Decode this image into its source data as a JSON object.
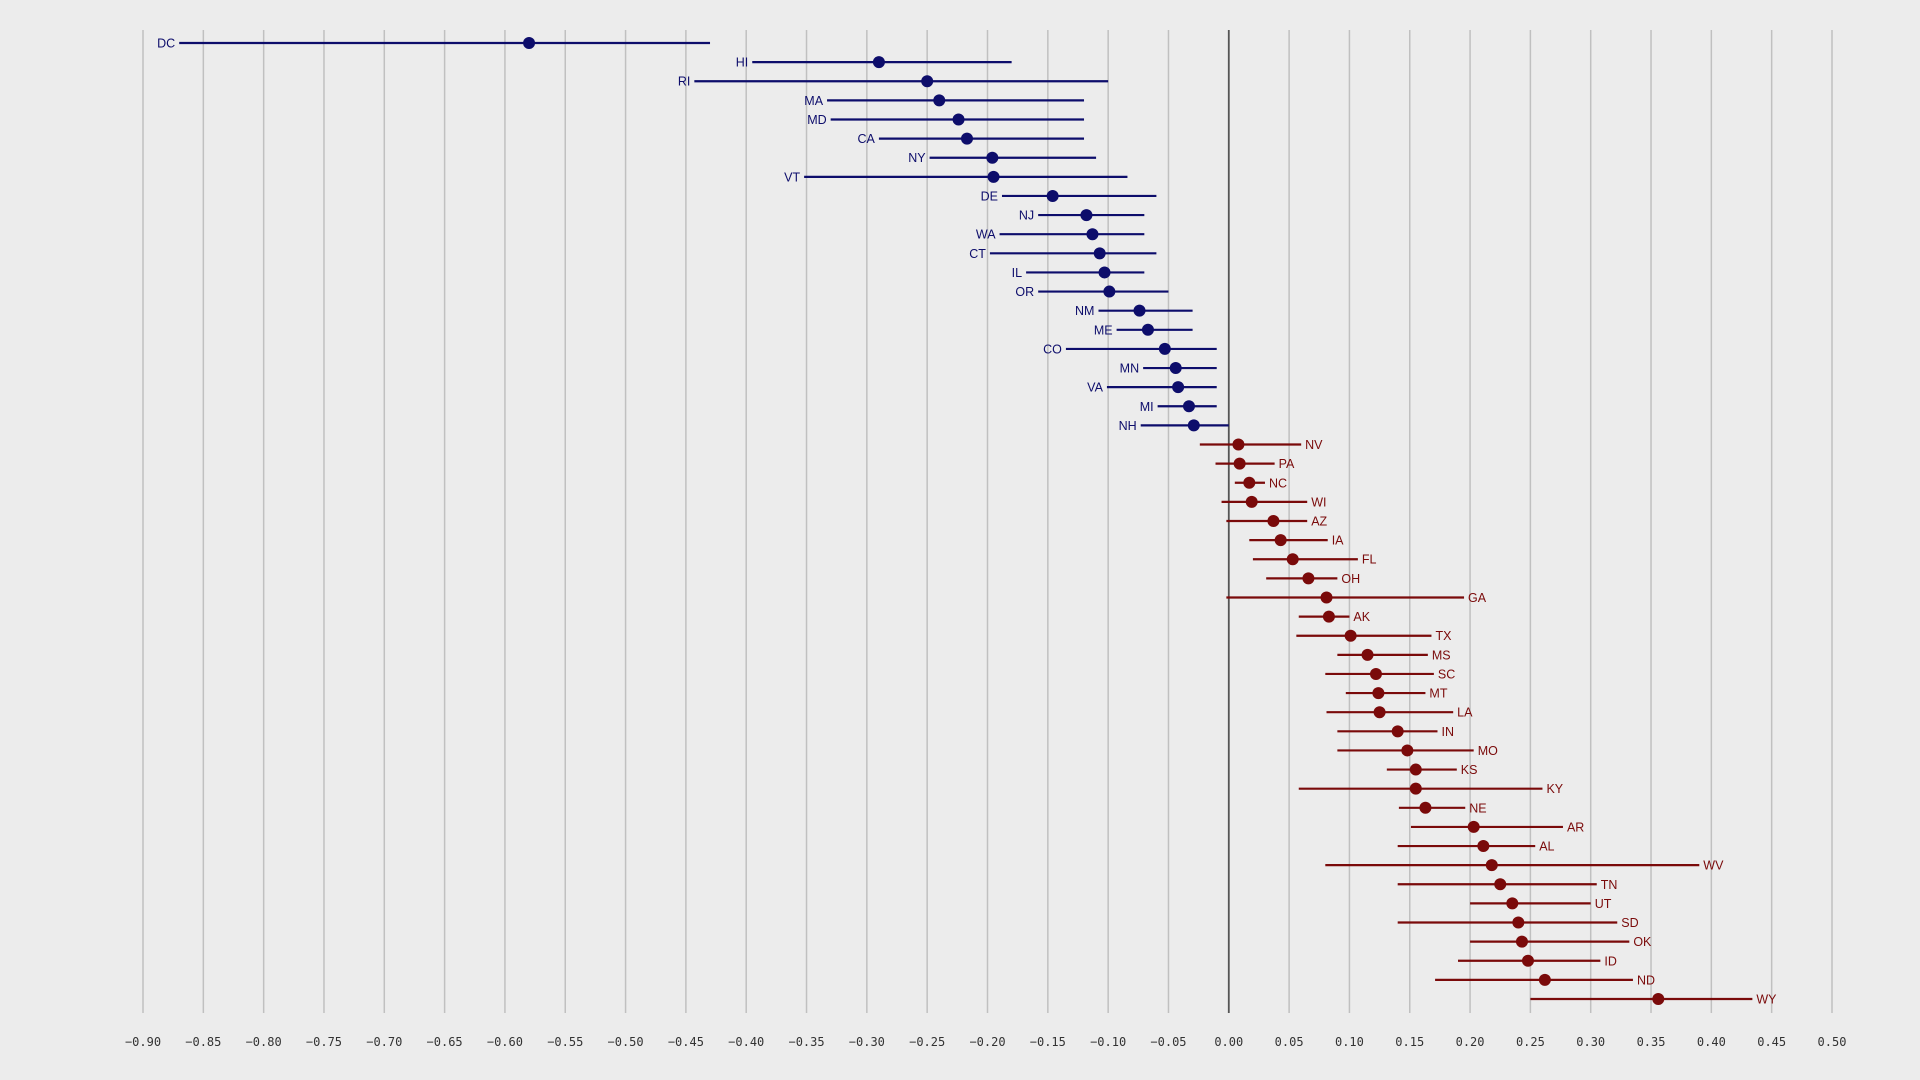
{
  "colors": {
    "background": "#ececec",
    "grid": "#c0c0c0",
    "zero_line": "#555555",
    "dem": "#0d0d6b",
    "rep": "#7a0a0a",
    "tick_text": "#333333"
  },
  "chart_data": {
    "type": "scatter",
    "subtype": "dot-and-whisker",
    "title": "",
    "xlabel": "",
    "ylabel": "",
    "xlim": [
      -0.9,
      0.5
    ],
    "x_ticks": [
      "−0.90",
      "−0.85",
      "−0.80",
      "−0.75",
      "−0.70",
      "−0.65",
      "−0.60",
      "−0.55",
      "−0.50",
      "−0.45",
      "−0.40",
      "−0.35",
      "−0.30",
      "−0.25",
      "−0.20",
      "−0.15",
      "−0.10",
      "−0.05",
      "0.00",
      "0.05",
      "0.10",
      "0.15",
      "0.20",
      "0.25",
      "0.30",
      "0.35",
      "0.40",
      "0.45",
      "0.50"
    ],
    "x_tick_values": [
      -0.9,
      -0.85,
      -0.8,
      -0.75,
      -0.7,
      -0.65,
      -0.6,
      -0.55,
      -0.5,
      -0.45,
      -0.4,
      -0.35,
      -0.3,
      -0.25,
      -0.2,
      -0.15,
      -0.1,
      -0.05,
      0,
      0.05,
      0.1,
      0.15,
      0.2,
      0.25,
      0.3,
      0.35,
      0.4,
      0.45,
      0.5
    ],
    "grid": true,
    "reference_line": 0,
    "points": [
      {
        "label": "DC",
        "value": -0.58,
        "low": -0.87,
        "high": -0.43
      },
      {
        "label": "HI",
        "value": -0.29,
        "low": -0.395,
        "high": -0.18
      },
      {
        "label": "RI",
        "value": -0.25,
        "low": -0.443,
        "high": -0.1
      },
      {
        "label": "MA",
        "value": -0.24,
        "low": -0.333,
        "high": -0.12
      },
      {
        "label": "MD",
        "value": -0.224,
        "low": -0.33,
        "high": -0.12
      },
      {
        "label": "CA",
        "value": -0.217,
        "low": -0.29,
        "high": -0.12
      },
      {
        "label": "NY",
        "value": -0.196,
        "low": -0.248,
        "high": -0.11
      },
      {
        "label": "VT",
        "value": -0.195,
        "low": -0.352,
        "high": -0.084
      },
      {
        "label": "DE",
        "value": -0.146,
        "low": -0.188,
        "high": -0.06
      },
      {
        "label": "NJ",
        "value": -0.118,
        "low": -0.158,
        "high": -0.07
      },
      {
        "label": "WA",
        "value": -0.113,
        "low": -0.19,
        "high": -0.07
      },
      {
        "label": "CT",
        "value": -0.107,
        "low": -0.198,
        "high": -0.06
      },
      {
        "label": "IL",
        "value": -0.103,
        "low": -0.168,
        "high": -0.07
      },
      {
        "label": "OR",
        "value": -0.099,
        "low": -0.158,
        "high": -0.05
      },
      {
        "label": "NM",
        "value": -0.074,
        "low": -0.108,
        "high": -0.03
      },
      {
        "label": "ME",
        "value": -0.067,
        "low": -0.093,
        "high": -0.03
      },
      {
        "label": "CO",
        "value": -0.053,
        "low": -0.135,
        "high": -0.01
      },
      {
        "label": "MN",
        "value": -0.044,
        "low": -0.071,
        "high": -0.01
      },
      {
        "label": "VA",
        "value": -0.042,
        "low": -0.101,
        "high": -0.01
      },
      {
        "label": "MI",
        "value": -0.033,
        "low": -0.059,
        "high": -0.01
      },
      {
        "label": "NH",
        "value": -0.029,
        "low": -0.073,
        "high": 0.0
      },
      {
        "label": "NV",
        "value": 0.008,
        "low": -0.024,
        "high": 0.06
      },
      {
        "label": "PA",
        "value": 0.009,
        "low": -0.011,
        "high": 0.038
      },
      {
        "label": "NC",
        "value": 0.017,
        "low": 0.005,
        "high": 0.03
      },
      {
        "label": "WI",
        "value": 0.019,
        "low": -0.006,
        "high": 0.065
      },
      {
        "label": "AZ",
        "value": 0.037,
        "low": -0.002,
        "high": 0.065
      },
      {
        "label": "IA",
        "value": 0.043,
        "low": 0.017,
        "high": 0.082
      },
      {
        "label": "FL",
        "value": 0.053,
        "low": 0.02,
        "high": 0.107
      },
      {
        "label": "OH",
        "value": 0.066,
        "low": 0.031,
        "high": 0.09
      },
      {
        "label": "GA",
        "value": 0.081,
        "low": -0.002,
        "high": 0.195
      },
      {
        "label": "AK",
        "value": 0.083,
        "low": 0.058,
        "high": 0.1
      },
      {
        "label": "TX",
        "value": 0.101,
        "low": 0.056,
        "high": 0.168
      },
      {
        "label": "MS",
        "value": 0.115,
        "low": 0.09,
        "high": 0.165
      },
      {
        "label": "SC",
        "value": 0.122,
        "low": 0.08,
        "high": 0.17
      },
      {
        "label": "MT",
        "value": 0.124,
        "low": 0.097,
        "high": 0.163
      },
      {
        "label": "LA",
        "value": 0.125,
        "low": 0.081,
        "high": 0.186
      },
      {
        "label": "IN",
        "value": 0.14,
        "low": 0.09,
        "high": 0.173
      },
      {
        "label": "MO",
        "value": 0.148,
        "low": 0.09,
        "high": 0.203
      },
      {
        "label": "KS",
        "value": 0.155,
        "low": 0.131,
        "high": 0.189
      },
      {
        "label": "KY",
        "value": 0.155,
        "low": 0.058,
        "high": 0.26
      },
      {
        "label": "NE",
        "value": 0.163,
        "low": 0.141,
        "high": 0.196
      },
      {
        "label": "AR",
        "value": 0.203,
        "low": 0.151,
        "high": 0.277
      },
      {
        "label": "AL",
        "value": 0.211,
        "low": 0.14,
        "high": 0.254
      },
      {
        "label": "WV",
        "value": 0.218,
        "low": 0.08,
        "high": 0.39
      },
      {
        "label": "TN",
        "value": 0.225,
        "low": 0.14,
        "high": 0.305
      },
      {
        "label": "UT",
        "value": 0.235,
        "low": 0.2,
        "high": 0.3
      },
      {
        "label": "SD",
        "value": 0.24,
        "low": 0.14,
        "high": 0.322
      },
      {
        "label": "OK",
        "value": 0.243,
        "low": 0.2,
        "high": 0.332
      },
      {
        "label": "ID",
        "value": 0.248,
        "low": 0.19,
        "high": 0.308
      },
      {
        "label": "ND",
        "value": 0.262,
        "low": 0.171,
        "high": 0.335
      },
      {
        "label": "WY",
        "value": 0.356,
        "low": 0.25,
        "high": 0.434
      }
    ]
  }
}
